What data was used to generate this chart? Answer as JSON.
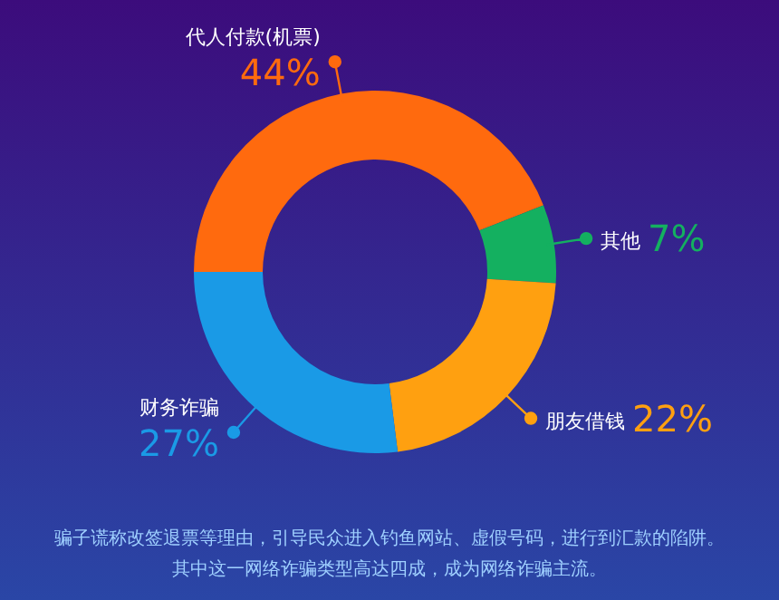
{
  "chart_data": {
    "type": "donut",
    "categories": [
      "代人付款(机票)",
      "其他",
      "朋友借钱",
      "财务诈骗"
    ],
    "values": [
      44,
      7,
      22,
      27
    ],
    "colors": [
      "#ff6a0e",
      "#14b060",
      "#ffa010",
      "#1a9ae6"
    ],
    "value_labels": [
      "44%",
      "7%",
      "22%",
      "27%"
    ],
    "annotations": [
      "骗子谎称改签退票等理由，引导民众进入钓鱼网站、虚假号码，进行到汇款的陷阱。",
      "其中这一网络诈骗类型高达四成，成为网络诈骗主流。"
    ]
  }
}
